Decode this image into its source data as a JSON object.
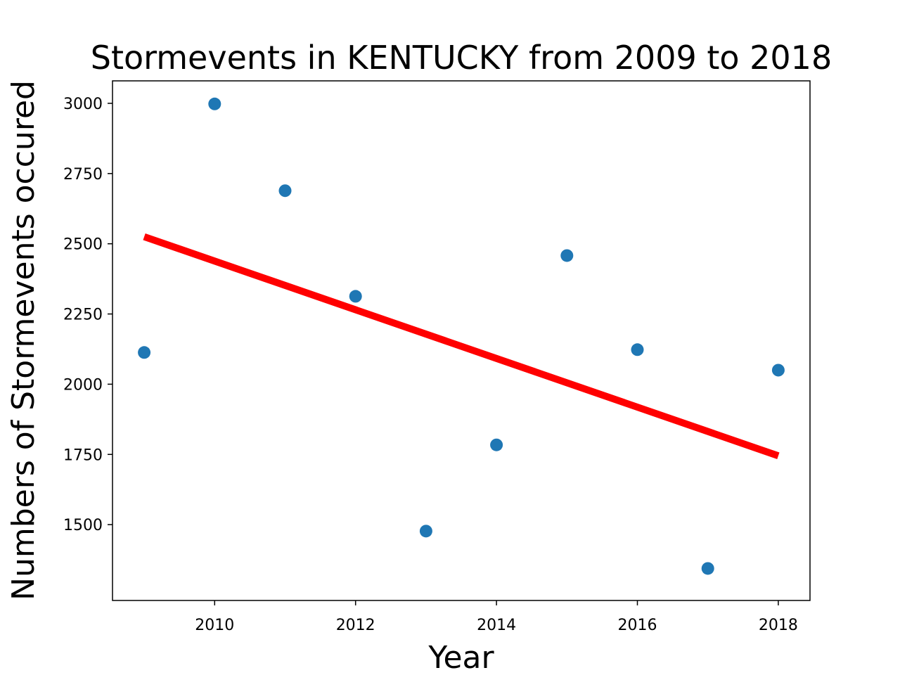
{
  "chart_data": {
    "type": "scatter",
    "title": "Stormevents in KENTUCKY from 2009 to 2018",
    "xlabel": "Year",
    "ylabel": "Numbers of Stormevents occured",
    "xlim": [
      2008.55,
      2018.45
    ],
    "ylim": [
      1230,
      3080
    ],
    "x_ticks": [
      2010,
      2012,
      2014,
      2016,
      2018
    ],
    "x_tick_labels": [
      "2010",
      "2012",
      "2014",
      "2016",
      "2018"
    ],
    "y_ticks": [
      1500,
      1750,
      2000,
      2250,
      2500,
      2750,
      3000
    ],
    "y_tick_labels": [
      "1500",
      "1750",
      "2000",
      "2250",
      "2500",
      "2750",
      "3000"
    ],
    "grid": false,
    "series": [
      {
        "kind": "scatter",
        "color": "#1f77b4",
        "x": [
          2009,
          2010,
          2011,
          2012,
          2013,
          2014,
          2015,
          2016,
          2017,
          2018
        ],
        "y": [
          2113,
          2998,
          2689,
          2313,
          1477,
          1784,
          2458,
          2123,
          1344,
          2050
        ]
      },
      {
        "kind": "line",
        "color": "#ff0000",
        "x": [
          2009,
          2018
        ],
        "y": [
          2525,
          1745
        ]
      }
    ]
  }
}
